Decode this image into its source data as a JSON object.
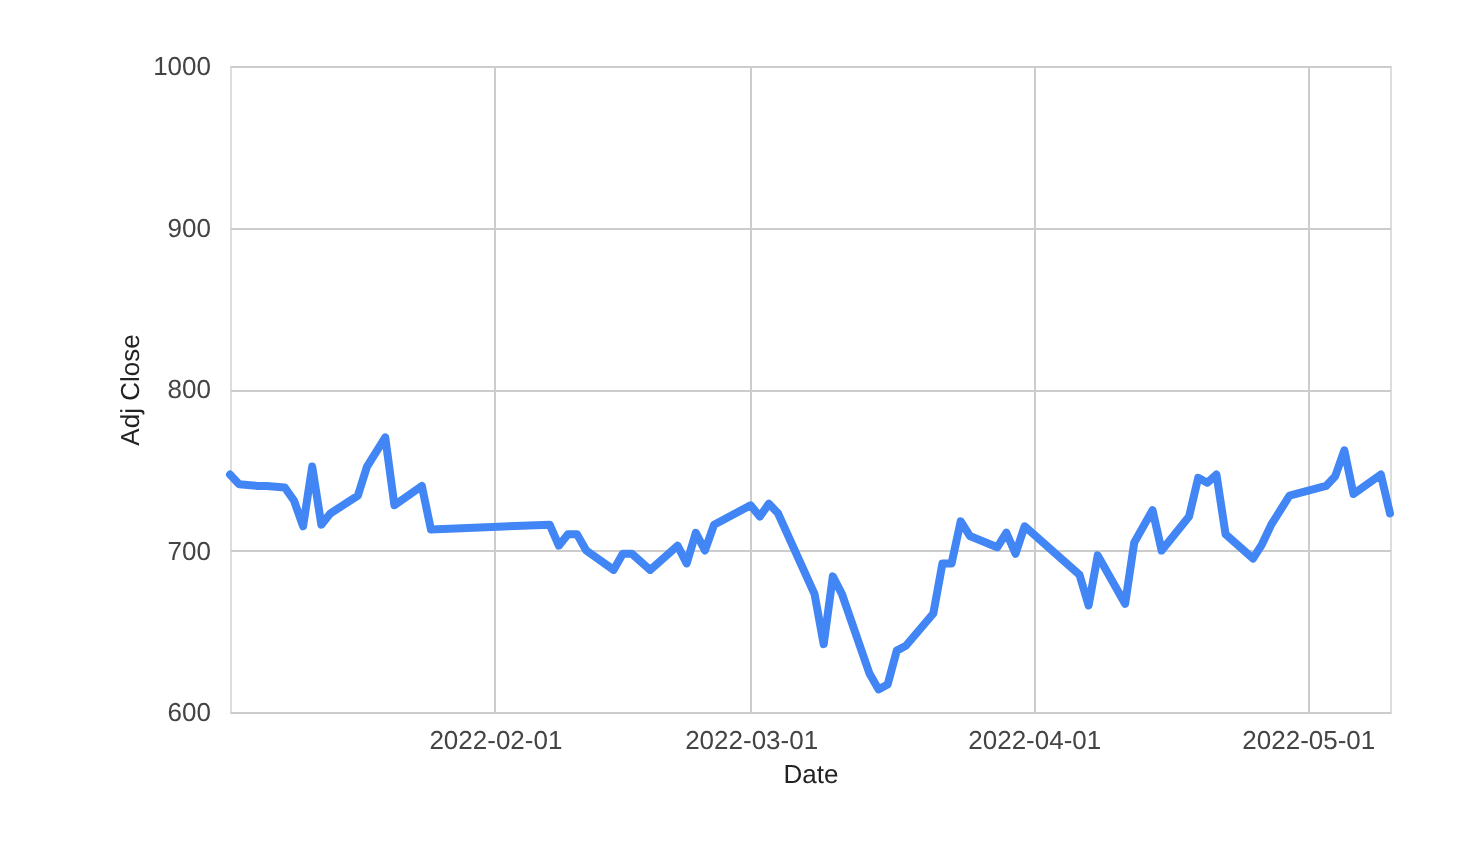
{
  "chart_data": {
    "type": "line",
    "xlabel": "Date",
    "ylabel": "Adj Close",
    "x": [
      "2022-01-03",
      "2022-01-04",
      "2022-01-06",
      "2022-01-07",
      "2022-01-09",
      "2022-01-10",
      "2022-01-11",
      "2022-01-12",
      "2022-01-13",
      "2022-01-14",
      "2022-01-17",
      "2022-01-18",
      "2022-01-20",
      "2022-01-21",
      "2022-01-24",
      "2022-01-25",
      "2022-02-07",
      "2022-02-08",
      "2022-02-09",
      "2022-02-10",
      "2022-02-11",
      "2022-02-14",
      "2022-02-15",
      "2022-02-16",
      "2022-02-18",
      "2022-02-21",
      "2022-02-22",
      "2022-02-23",
      "2022-02-24",
      "2022-02-25",
      "2022-03-01",
      "2022-03-02",
      "2022-03-03",
      "2022-03-04",
      "2022-03-08",
      "2022-03-09",
      "2022-03-10",
      "2022-03-11",
      "2022-03-14",
      "2022-03-15",
      "2022-03-16",
      "2022-03-17",
      "2022-03-18",
      "2022-03-21",
      "2022-03-22",
      "2022-03-23",
      "2022-03-24",
      "2022-03-25",
      "2022-03-28",
      "2022-03-29",
      "2022-03-30",
      "2022-03-31",
      "2022-04-06",
      "2022-04-07",
      "2022-04-08",
      "2022-04-11",
      "2022-04-12",
      "2022-04-14",
      "2022-04-15",
      "2022-04-18",
      "2022-04-19",
      "2022-04-20",
      "2022-04-21",
      "2022-04-22",
      "2022-04-25",
      "2022-04-26",
      "2022-04-27",
      "2022-04-29",
      "2022-05-03",
      "2022-05-04",
      "2022-05-05",
      "2022-05-06",
      "2022-05-09",
      "2022-05-10"
    ],
    "series": [
      {
        "color": "#4285f4",
        "values": [
          747,
          741,
          740,
          740,
          739,
          731,
          715,
          752,
          716,
          723,
          734,
          752,
          770,
          728,
          740,
          713,
          716,
          703,
          710,
          710,
          700,
          688,
          698,
          698,
          688,
          703,
          692,
          711,
          700,
          716,
          728,
          721,
          729,
          723,
          673,
          642,
          684,
          673,
          624,
          614,
          617,
          638,
          641,
          661,
          692,
          692,
          718,
          709,
          702,
          711,
          698,
          715,
          685,
          666,
          697,
          667,
          705,
          725,
          700,
          721,
          745,
          742,
          747,
          710,
          695,
          704,
          716,
          734,
          740,
          746,
          762,
          735,
          747,
          723
        ]
      }
    ],
    "xlim": [
      "2022-01-03",
      "2022-05-10"
    ],
    "xticks": [
      "2022-02-01",
      "2022-03-01",
      "2022-04-01",
      "2022-05-01"
    ],
    "ylim": [
      600,
      1000
    ],
    "yticks": [
      600,
      700,
      800,
      900,
      1000
    ],
    "grid": true,
    "legend": false,
    "marker": "none",
    "line_style": "solid"
  }
}
